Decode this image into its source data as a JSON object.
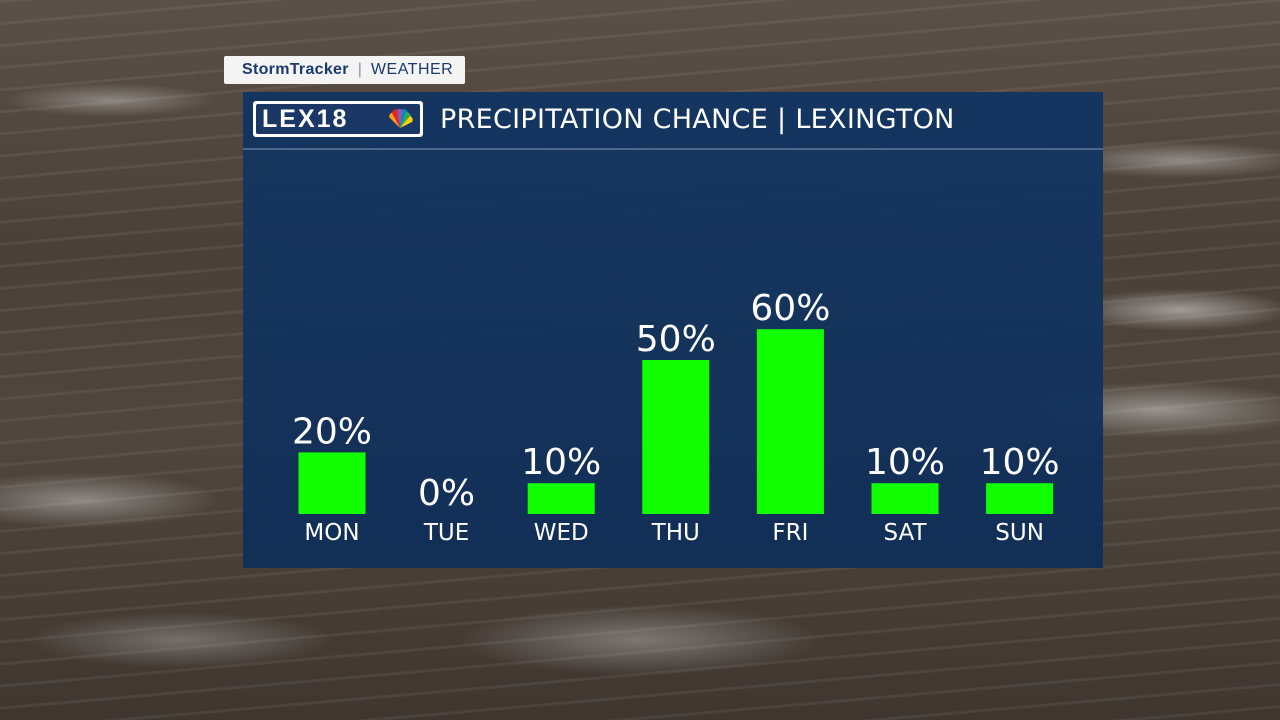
{
  "tag": {
    "brand": "StormTracker",
    "section": "WEATHER"
  },
  "logo": {
    "text": "LEX18",
    "mark": "nbc-peacock-icon"
  },
  "title": "PRECIPITATION CHANCE | LEXINGTON",
  "colors": {
    "panel": "#143662",
    "bar": "#12ff00",
    "text": "#ffffff",
    "tag_text": "#1a3a6e"
  },
  "chart_data": {
    "type": "bar",
    "title": "PRECIPITATION CHANCE | LEXINGTON",
    "categories": [
      "MON",
      "TUE",
      "WED",
      "THU",
      "FRI",
      "SAT",
      "SUN"
    ],
    "values": [
      20,
      0,
      10,
      50,
      60,
      10,
      10
    ],
    "value_labels": [
      "20%",
      "0%",
      "10%",
      "50%",
      "60%",
      "10%",
      "10%"
    ],
    "unit": "%",
    "ylim": [
      0,
      100
    ],
    "grid": false,
    "legend": "none"
  }
}
